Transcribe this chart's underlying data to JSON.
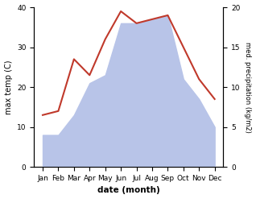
{
  "months": [
    "Jan",
    "Feb",
    "Mar",
    "Apr",
    "May",
    "Jun",
    "Jul",
    "Aug",
    "Sep",
    "Oct",
    "Nov",
    "Dec"
  ],
  "temp": [
    13,
    14,
    27,
    23,
    32,
    39,
    36,
    37,
    38,
    30,
    22,
    17
  ],
  "precip": [
    8,
    8,
    13,
    21,
    23,
    36,
    36,
    37,
    38,
    22,
    17,
    10
  ],
  "temp_color": "#c0392b",
  "precip_color": "#b8c4e8",
  "temp_ylim": [
    0,
    40
  ],
  "precip_ylim": [
    0,
    40
  ],
  "right_yticks": [
    0,
    5,
    10,
    15,
    20
  ],
  "right_ylim": [
    0,
    20
  ],
  "temp_yticks": [
    0,
    10,
    20,
    30,
    40
  ],
  "ylabel_left": "max temp (C)",
  "ylabel_right": "med. precipitation (kg/m2)",
  "xlabel": "date (month)"
}
